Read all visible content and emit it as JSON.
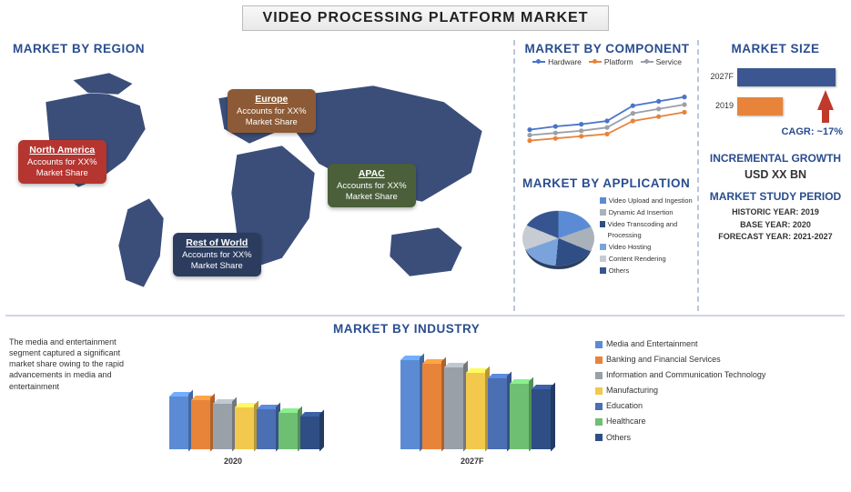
{
  "title": "VIDEO PROCESSING PLATFORM MARKET",
  "region": {
    "title": "MARKET BY REGION",
    "map_fill": "#3b4e7a",
    "labels": [
      {
        "key": "na",
        "name": "North America",
        "line1": "Accounts for XX%",
        "line2": "Market Share"
      },
      {
        "key": "eu",
        "name": "Europe",
        "line1": "Accounts for XX%",
        "line2": "Market Share"
      },
      {
        "key": "ap",
        "name": "APAC",
        "line1": "Accounts for XX%",
        "line2": "Market Share"
      },
      {
        "key": "rw",
        "name": "Rest of World",
        "line1": "Accounts for XX%",
        "line2": "Market Share"
      }
    ]
  },
  "component": {
    "title": "MARKET BY COMPONENT",
    "series": [
      {
        "name": "Hardware",
        "color": "#4a74c9",
        "values": [
          32,
          35,
          37,
          40,
          54,
          58,
          62
        ]
      },
      {
        "name": "Platform",
        "color": "#e8833a",
        "values": [
          22,
          24,
          26,
          28,
          40,
          44,
          48
        ]
      },
      {
        "name": "Service",
        "color": "#9aa0a8",
        "values": [
          27,
          29,
          31,
          34,
          47,
          51,
          55
        ]
      }
    ],
    "ylim": [
      0,
      80
    ]
  },
  "application": {
    "title": "MARKET BY APPLICATION",
    "slices": [
      {
        "name": "Video Upload and Ingestion",
        "color": "#5b8bd4",
        "value": 17
      },
      {
        "name": "Dynamic Ad Insertion",
        "color": "#a9b1bb",
        "value": 17
      },
      {
        "name": "Video Transcoding and Processing",
        "color": "#2f4e85",
        "value": 17
      },
      {
        "name": "Video Hosting",
        "color": "#7aa3db",
        "value": 16
      },
      {
        "name": "Content Rendering",
        "color": "#c7ccd3",
        "value": 17
      },
      {
        "name": "Others",
        "color": "#36548f",
        "value": 16
      }
    ]
  },
  "size": {
    "title": "MARKET SIZE",
    "bars": [
      {
        "label": "2027F",
        "value": 108,
        "color": "#3c5691"
      },
      {
        "label": "2019",
        "value": 50,
        "color": "#e8833a"
      }
    ],
    "cagr": "CAGR: ~17%",
    "arrow_color": "#c0392b"
  },
  "growth": {
    "title": "INCREMENTAL GROWTH",
    "value": "USD XX BN"
  },
  "period": {
    "title": "MARKET STUDY PERIOD",
    "lines": [
      "HISTORIC YEAR: 2019",
      "BASE YEAR: 2020",
      "FORECAST YEAR: 2021-2027"
    ]
  },
  "industry": {
    "title": "MARKET BY INDUSTRY",
    "text": "The media and entertainment segment captured a significant market share owing to the rapid advancements in media and entertainment",
    "categories": [
      {
        "name": "Media and Entertainment",
        "color": "#5b8bd4"
      },
      {
        "name": "Banking and Financial Services",
        "color": "#e8833a"
      },
      {
        "name": "Information and Communication Technology",
        "color": "#9aa0a8"
      },
      {
        "name": "Manufacturing",
        "color": "#f2c94c"
      },
      {
        "name": "Education",
        "color": "#4a6fb3"
      },
      {
        "name": "Healthcare",
        "color": "#6fbf73"
      },
      {
        "name": "Others",
        "color": "#2f4e85"
      }
    ],
    "groups": [
      {
        "label": "2020",
        "values": [
          58,
          54,
          50,
          46,
          44,
          40,
          36
        ]
      },
      {
        "label": "2027F",
        "values": [
          98,
          94,
          90,
          84,
          78,
          72,
          66
        ]
      }
    ],
    "ymax": 110
  }
}
